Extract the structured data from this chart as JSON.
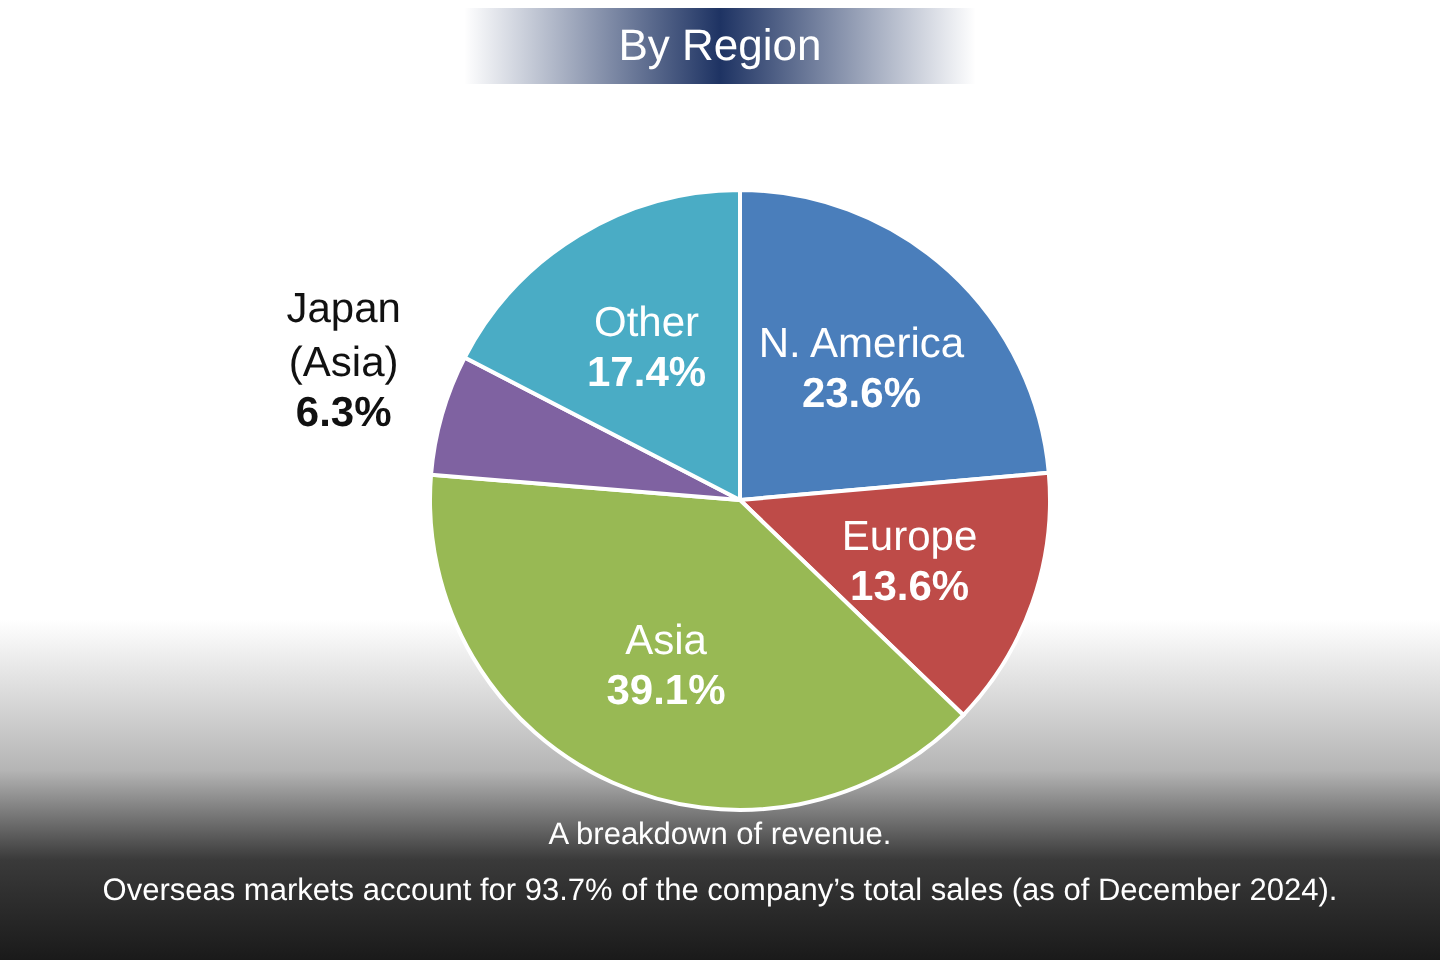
{
  "chart_data": {
    "type": "pie",
    "title": "By Region",
    "categories": [
      "N. America",
      "Europe",
      "Asia",
      "Japan (Asia)",
      "Other"
    ],
    "values": [
      23.6,
      13.6,
      39.1,
      6.3,
      17.4
    ],
    "colors": [
      "#4a7ebb",
      "#be4b48",
      "#98b954",
      "#7f62a1",
      "#4aacc5"
    ],
    "value_labels": [
      "23.6%",
      "13.6%",
      "39.1%",
      "6.3%",
      "17.4%"
    ],
    "annotations": [
      "A breakdown of revenue.",
      "Overseas markets account for 93.7% of the company’s total sales (as of December 2024)."
    ]
  }
}
